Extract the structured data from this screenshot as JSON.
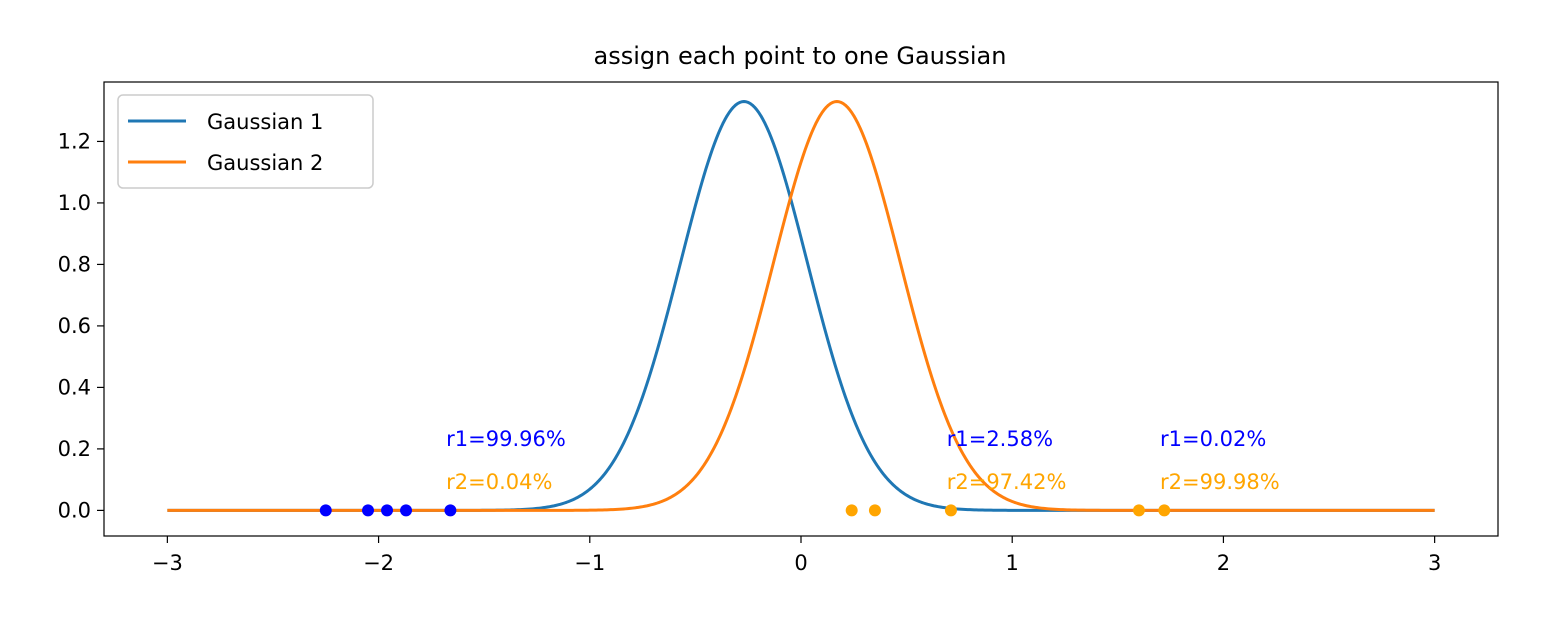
{
  "chart_data": {
    "type": "line",
    "title": "assign each point to one Gaussian",
    "xlabel": "",
    "ylabel": "",
    "xlim": [
      -3.3,
      3.3
    ],
    "ylim": [
      -0.0833,
      1.3933
    ],
    "x_ticks": [
      -3,
      -2,
      -1,
      0,
      1,
      2,
      3
    ],
    "x_tick_labels": [
      "−3",
      "−2",
      "−1",
      "0",
      "1",
      "2",
      "3"
    ],
    "y_ticks": [
      0.0,
      0.2,
      0.4,
      0.6,
      0.8,
      1.0,
      1.2
    ],
    "y_tick_labels": [
      "0.0",
      "0.2",
      "0.4",
      "0.6",
      "0.8",
      "1.0",
      "1.2"
    ],
    "grid": false,
    "legend_position": "top-left",
    "curve_domain": [
      -3,
      3
    ],
    "series": [
      {
        "name": "Gaussian 1",
        "type": "gaussian",
        "mean": -0.27,
        "std": 0.3,
        "color": "#1f77b4"
      },
      {
        "name": "Gaussian 2",
        "type": "gaussian",
        "mean": 0.17,
        "std": 0.3,
        "color": "#ff7f0e"
      }
    ],
    "points": [
      {
        "x": -2.25,
        "y": 0,
        "color": "#0000ff"
      },
      {
        "x": -2.05,
        "y": 0,
        "color": "#0000ff"
      },
      {
        "x": -1.96,
        "y": 0,
        "color": "#0000ff"
      },
      {
        "x": -1.87,
        "y": 0,
        "color": "#0000ff"
      },
      {
        "x": -1.66,
        "y": 0,
        "color": "#0000ff"
      },
      {
        "x": 0.24,
        "y": 0,
        "color": "#ffa500"
      },
      {
        "x": 0.35,
        "y": 0,
        "color": "#ffa500"
      },
      {
        "x": 0.71,
        "y": 0,
        "color": "#ffa500"
      },
      {
        "x": 1.6,
        "y": 0,
        "color": "#ffa500"
      },
      {
        "x": 1.72,
        "y": 0,
        "color": "#ffa500"
      }
    ],
    "annotations": [
      {
        "text": "r1=99.96%",
        "x": -1.68,
        "y": 0.21,
        "color": "#0000ff"
      },
      {
        "text": "r2=0.04%",
        "x": -1.68,
        "y": 0.07,
        "color": "#ffa500"
      },
      {
        "text": "r1=2.58%",
        "x": 0.69,
        "y": 0.21,
        "color": "#0000ff"
      },
      {
        "text": "r2=97.42%",
        "x": 0.69,
        "y": 0.07,
        "color": "#ffa500"
      },
      {
        "text": "r1=0.02%",
        "x": 1.7,
        "y": 0.21,
        "color": "#0000ff"
      },
      {
        "text": "r2=99.98%",
        "x": 1.7,
        "y": 0.07,
        "color": "#ffa500"
      }
    ]
  }
}
